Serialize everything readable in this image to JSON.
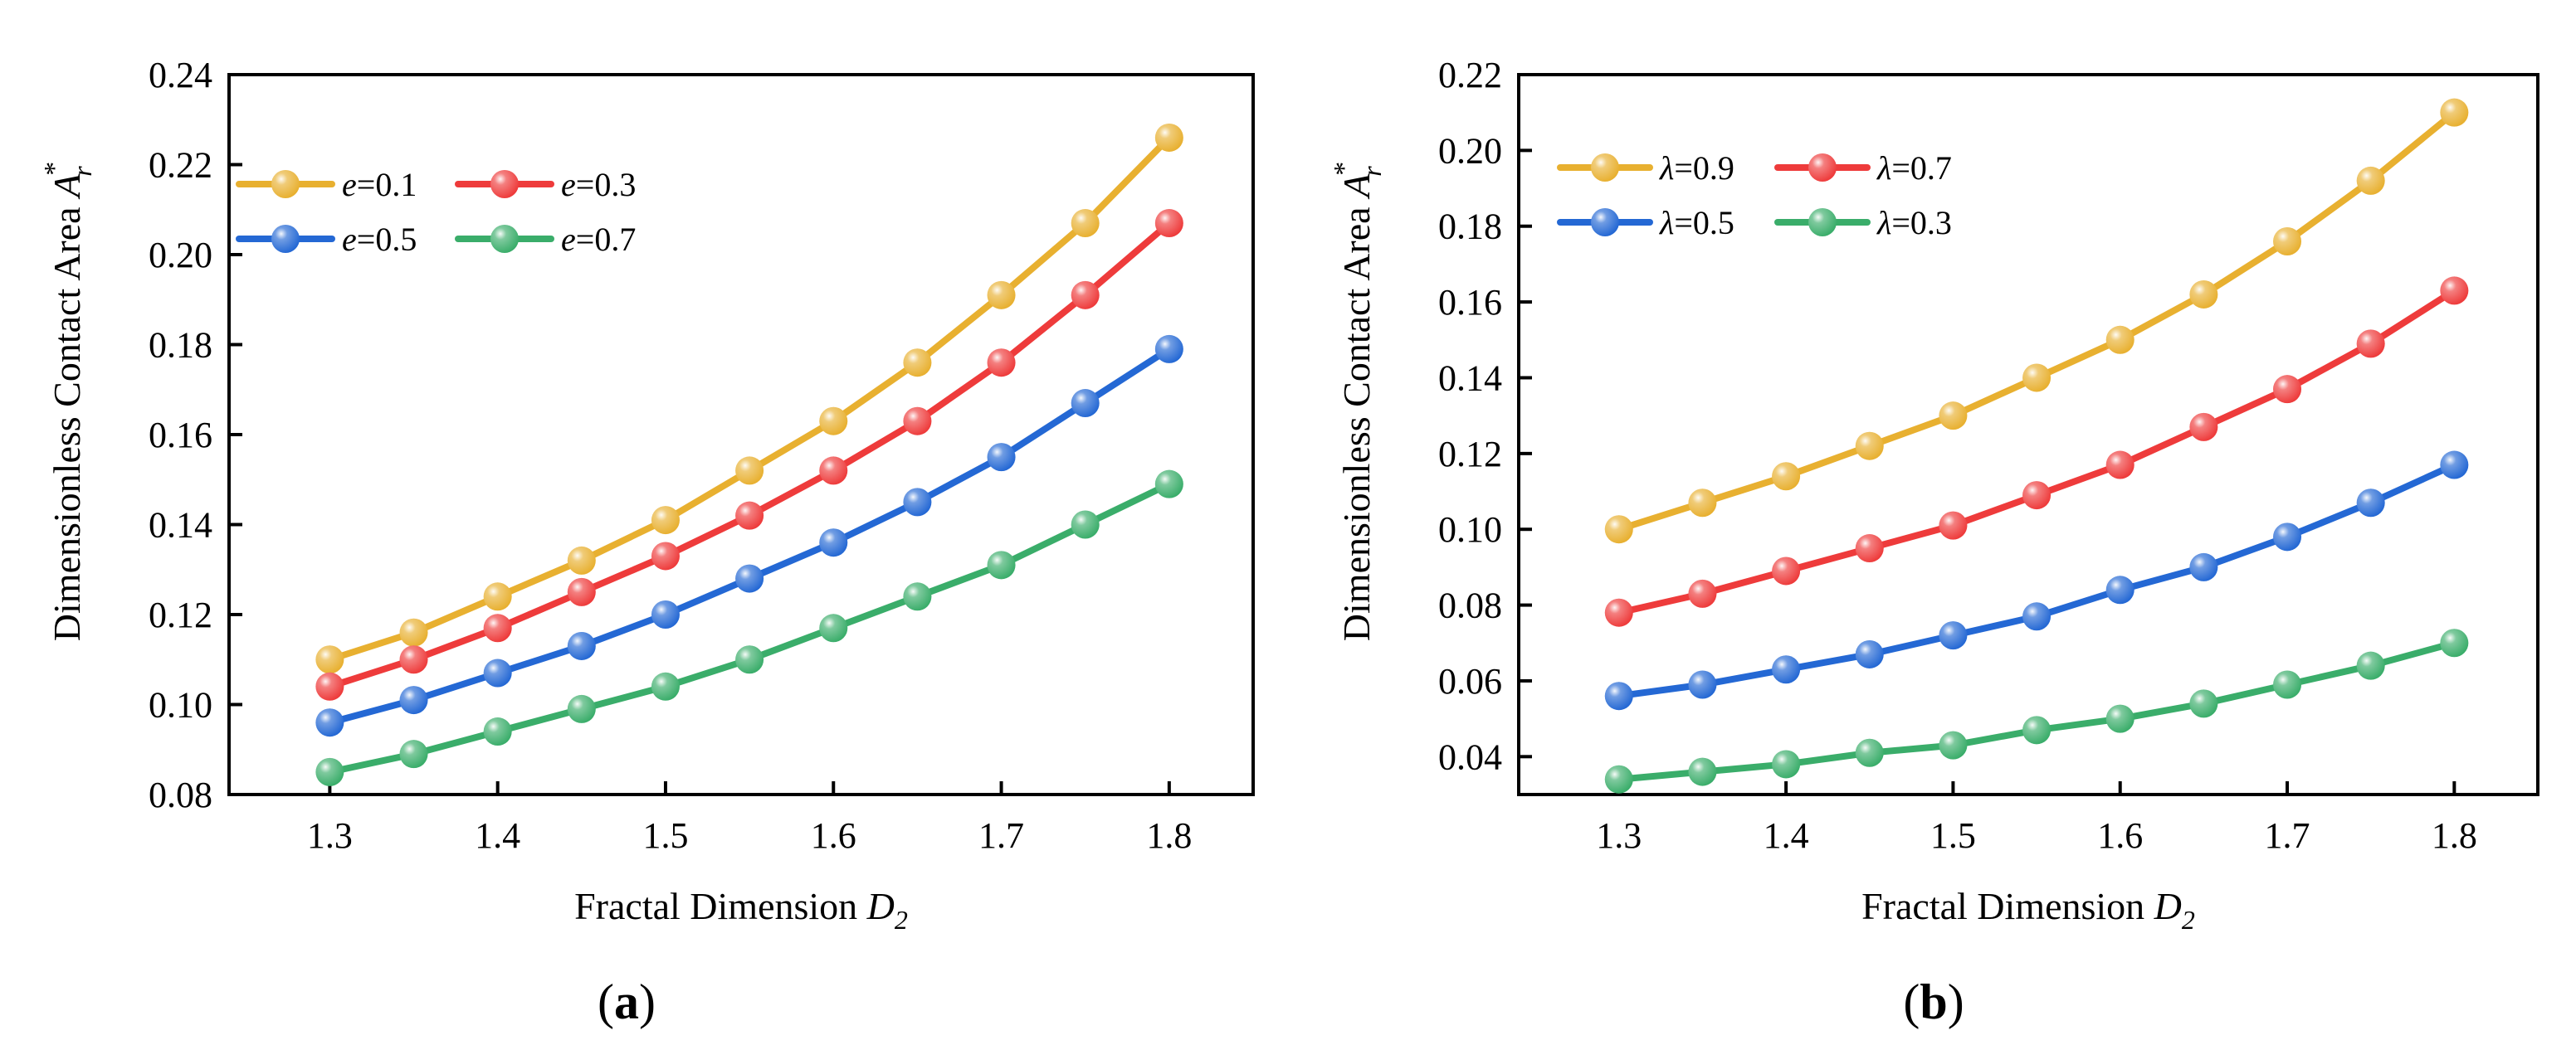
{
  "chart_data": [
    {
      "type": "line",
      "panel_label": {
        "open": "(",
        "letter": "a",
        "close": ")"
      },
      "xlabel": {
        "main": "Fractal Dimension ",
        "var": "D",
        "sub": "2"
      },
      "ylabel": {
        "main": "Dimensionless Contact Area ",
        "var": "A",
        "sub": "r",
        "sup": "*"
      },
      "x": [
        1.3,
        1.35,
        1.4,
        1.45,
        1.5,
        1.55,
        1.6,
        1.65,
        1.7,
        1.75,
        1.8
      ],
      "xlim": [
        1.24,
        1.85
      ],
      "ylim": [
        0.08,
        0.24
      ],
      "xticks": [
        "1.3",
        "1.4",
        "1.5",
        "1.6",
        "1.7",
        "1.8"
      ],
      "yticks": [
        "0.08",
        "0.10",
        "0.12",
        "0.14",
        "0.16",
        "0.18",
        "0.20",
        "0.22",
        "0.24"
      ],
      "legend_position": "top-left",
      "series": [
        {
          "name": "e=0.1",
          "legend": {
            "var": "e",
            "rest": "=0.1"
          },
          "color": "#E8B030",
          "values": [
            0.11,
            0.116,
            0.124,
            0.132,
            0.141,
            0.152,
            0.163,
            0.176,
            0.191,
            0.207,
            0.226
          ]
        },
        {
          "name": "e=0.3",
          "legend": {
            "var": "e",
            "rest": "=0.3"
          },
          "color": "#EE3B3B",
          "values": [
            0.104,
            0.11,
            0.117,
            0.125,
            0.133,
            0.142,
            0.152,
            0.163,
            0.176,
            0.191,
            0.207
          ]
        },
        {
          "name": "e=0.5",
          "legend": {
            "var": "e",
            "rest": "=0.5"
          },
          "color": "#2468D4",
          "values": [
            0.096,
            0.101,
            0.107,
            0.113,
            0.12,
            0.128,
            0.136,
            0.145,
            0.155,
            0.167,
            0.179
          ]
        },
        {
          "name": "e=0.7",
          "legend": {
            "var": "e",
            "rest": "=0.7"
          },
          "color": "#3AAD6A",
          "values": [
            0.085,
            0.089,
            0.094,
            0.099,
            0.104,
            0.11,
            0.117,
            0.124,
            0.131,
            0.14,
            0.149
          ]
        }
      ]
    },
    {
      "type": "line",
      "panel_label": {
        "open": "(",
        "letter": "b",
        "close": ")"
      },
      "xlabel": {
        "main": "Fractal Dimension ",
        "var": "D",
        "sub": "2"
      },
      "ylabel": {
        "main": "Dimensionless Contact Area ",
        "var": "A",
        "sub": "r",
        "sup": "*"
      },
      "x": [
        1.3,
        1.35,
        1.4,
        1.45,
        1.5,
        1.55,
        1.6,
        1.65,
        1.7,
        1.75,
        1.8
      ],
      "xlim": [
        1.24,
        1.85
      ],
      "ylim": [
        0.03,
        0.22
      ],
      "xticks": [
        "1.3",
        "1.4",
        "1.5",
        "1.6",
        "1.7",
        "1.8"
      ],
      "yticks": [
        "0.04",
        "0.06",
        "0.08",
        "0.10",
        "0.12",
        "0.14",
        "0.16",
        "0.18",
        "0.20",
        "0.22"
      ],
      "legend_position": "top-left",
      "series": [
        {
          "name": "λ=0.9",
          "legend": {
            "var": "λ",
            "rest": "=0.9"
          },
          "color": "#E8B030",
          "values": [
            0.1,
            0.107,
            0.114,
            0.122,
            0.13,
            0.14,
            0.15,
            0.162,
            0.176,
            0.192,
            0.21
          ]
        },
        {
          "name": "λ=0.7",
          "legend": {
            "var": "λ",
            "rest": "=0.7"
          },
          "color": "#EE3B3B",
          "values": [
            0.078,
            0.083,
            0.089,
            0.095,
            0.101,
            0.109,
            0.117,
            0.127,
            0.137,
            0.149,
            0.163
          ]
        },
        {
          "name": "λ=0.5",
          "legend": {
            "var": "λ",
            "rest": "=0.5"
          },
          "color": "#2468D4",
          "values": [
            0.056,
            0.059,
            0.063,
            0.067,
            0.072,
            0.077,
            0.084,
            0.09,
            0.098,
            0.107,
            0.117
          ]
        },
        {
          "name": "λ=0.3",
          "legend": {
            "var": "λ",
            "rest": "=0.3"
          },
          "color": "#3AAD6A",
          "values": [
            0.034,
            0.036,
            0.038,
            0.041,
            0.043,
            0.047,
            0.05,
            0.054,
            0.059,
            0.064,
            0.07
          ]
        }
      ]
    }
  ]
}
